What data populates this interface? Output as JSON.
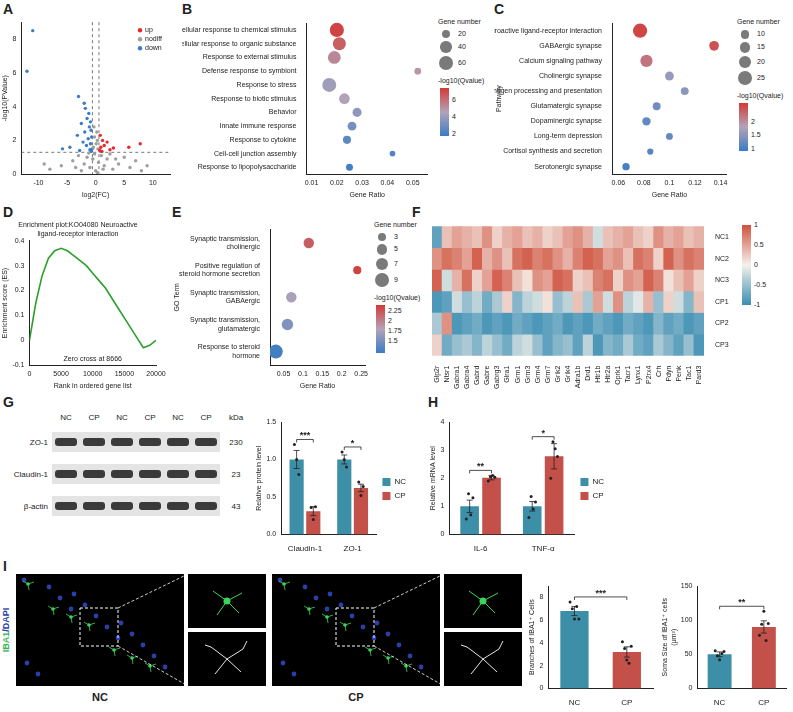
{
  "chart_data": [
    {
      "panel": "A",
      "type": "scatter",
      "x_label": "log2(FC)",
      "y_label": "-log10(PValue)",
      "xlim": [
        -13,
        13
      ],
      "xticks": [
        -10,
        -5,
        0,
        5,
        10
      ],
      "ylim": [
        0,
        9
      ],
      "yticks": [
        0,
        2,
        4,
        6,
        8
      ],
      "grid": false,
      "legend": "upper right",
      "vlines": [
        -0.58,
        0.58
      ],
      "hline": 1.3,
      "series": [
        {
          "name": "up",
          "color": "#e8292b",
          "x": [
            0.8,
            1.2,
            2.0,
            1.5,
            0.9,
            3.1,
            5.8,
            7.8,
            0.7,
            2.5,
            1.1
          ],
          "values": [
            2.3,
            2.0,
            1.9,
            1.7,
            1.6,
            1.55,
            1.6,
            1.8,
            1.4,
            1.45,
            1.35
          ]
        },
        {
          "name": "nodiff",
          "color": "#9e9e9e",
          "x": [
            -0.3,
            0.2,
            -0.2,
            0.3,
            0.1,
            -0.4,
            0.4,
            -8,
            -6,
            -4,
            -3,
            -2,
            -1.5,
            -1,
            -0.5,
            0,
            0.5,
            1,
            1.5,
            2,
            3,
            4,
            5,
            6,
            7,
            8,
            9,
            -9,
            -2.5,
            2.5,
            -3.5,
            3.5,
            -0.2,
            0.3,
            -1.2,
            1.3
          ],
          "values": [
            2.8,
            2.5,
            2.2,
            2.0,
            1.8,
            1.6,
            1.5,
            0.3,
            0.5,
            0.8,
            1.1,
            0.6,
            1.0,
            0.4,
            0.9,
            0.2,
            0.7,
            1.1,
            0.5,
            0.9,
            0.3,
            0.6,
            1.0,
            0.4,
            0.8,
            0.2,
            0.5,
            0.6,
            0.2,
            1.2,
            0.4,
            0.9,
            1.2,
            0.1,
            1.25,
            0.3
          ]
        },
        {
          "name": "down",
          "color": "#3d7cc9",
          "x": [
            -11,
            -12,
            -3,
            -2,
            -1.8,
            -1.2,
            -1.5,
            -0.9,
            -2.5,
            -1.1,
            -0.8,
            -1.9,
            -3.2,
            -0.7,
            -1.3,
            -2.2,
            -0.9,
            -1.6,
            -4.5,
            -0.6,
            -1.0,
            -2.8,
            -5.8,
            -0.75
          ],
          "values": [
            8.5,
            6.1,
            4.6,
            4.2,
            3.9,
            3.6,
            3.3,
            3.1,
            3.0,
            2.8,
            2.6,
            2.5,
            2.3,
            2.2,
            2.1,
            1.9,
            1.8,
            1.7,
            1.6,
            1.5,
            1.45,
            1.4,
            1.5,
            1.35
          ]
        }
      ]
    },
    {
      "panel": "B",
      "type": "bubble",
      "x_label": "Gene Ratio",
      "grid": false,
      "xlim": [
        0.008,
        0.056
      ],
      "xticks": [
        0.01,
        0.02,
        0.03,
        0.04,
        0.05
      ],
      "categories": [
        "Cellular response to chemical stimulus",
        "Cellular response to organic substance",
        "Response to external stimulus",
        "Defense response to symbiont",
        "Response to stress",
        "Response to biotic stimulus",
        "Behavior",
        "Innate immune response",
        "Response to cytokine",
        "Cell-cell junction assembly",
        "Response to lipopolysaccharide"
      ],
      "x": [
        0.02,
        0.021,
        0.019,
        0.052,
        0.017,
        0.023,
        0.028,
        0.026,
        0.024,
        0.042,
        0.025
      ],
      "size": [
        62,
        52,
        50,
        14,
        60,
        35,
        25,
        24,
        20,
        10,
        15
      ],
      "size_title": "Gene number",
      "size_ticks": [
        20,
        40,
        60
      ],
      "color_values": [
        7.2,
        6.5,
        5.4,
        5.0,
        4.2,
        4.6,
        3.8,
        3.2,
        2.6,
        2.4,
        2.0
      ],
      "color_title": "-log10(Qvalue)",
      "color_range": [
        1.8,
        7.5
      ],
      "color_ticks": [
        2,
        4,
        6
      ]
    },
    {
      "panel": "C",
      "type": "bubble",
      "x_label": "Gene Ratio",
      "y_label": "Pathway",
      "grid": false,
      "xlim": [
        0.055,
        0.145
      ],
      "xticks": [
        0.06,
        0.08,
        0.1,
        0.12,
        0.14
      ],
      "categories": [
        "Neuroactive ligand-receptor interaction",
        "GABAergic synapse",
        "Calcium signaling pathway",
        "Cholinergic synapse",
        "Antigen processing and presentation",
        "Glutamatergic synapse",
        "Dopaminergic synapse",
        "Long-term depression",
        "Cortisol synthesis and secretion",
        "Serotonergic synapse"
      ],
      "x": [
        0.077,
        0.135,
        0.082,
        0.1,
        0.112,
        0.09,
        0.082,
        0.1,
        0.085,
        0.066
      ],
      "size": [
        26,
        12,
        19,
        10,
        8,
        8,
        9,
        6,
        5,
        7
      ],
      "size_title": "Gene number",
      "size_ticks": [
        10,
        15,
        20,
        25
      ],
      "color_values": [
        2.6,
        2.5,
        2.2,
        1.6,
        1.5,
        1.3,
        1.2,
        1.2,
        1.1,
        1.0
      ],
      "color_title": "-log10(Qvalue)",
      "color_range": [
        0.9,
        2.7
      ],
      "color_ticks": [
        1,
        1.5,
        2
      ]
    },
    {
      "panel": "D",
      "type": "line",
      "title": "Enrichment plot:KO04080 Neuroactive ligand-receptor interaction",
      "x_label": "Rank in ordered gene list",
      "y_label": "Enrichment score (ES)",
      "grid": false,
      "color": "#2ca02c",
      "xlim": [
        0,
        20000
      ],
      "xticks": [
        0,
        5000,
        10000,
        15000,
        20000
      ],
      "ylim": [
        -0.1,
        0.4
      ],
      "yticks": [
        -0.1,
        0,
        0.1,
        0.2,
        0.3,
        0.4
      ],
      "x": [
        0,
        1000,
        2000,
        3000,
        4000,
        5000,
        6000,
        7000,
        8000,
        9000,
        10000,
        11000,
        12000,
        13000,
        14000,
        15000,
        16000,
        17000,
        18000,
        19000,
        20000
      ],
      "values": [
        0,
        0.15,
        0.26,
        0.33,
        0.36,
        0.37,
        0.36,
        0.34,
        0.32,
        0.3,
        0.27,
        0.24,
        0.21,
        0.17,
        0.13,
        0.09,
        0.05,
        0.01,
        -0.03,
        -0.02,
        0
      ],
      "annotation": "Zero cross at 8666"
    },
    {
      "panel": "E",
      "type": "bubble",
      "x_label": "Gene Ratio",
      "y_label": "GO Term",
      "grid": false,
      "xlim": [
        0.015,
        0.26
      ],
      "xticks": [
        0.05,
        0.1,
        0.15,
        0.2,
        0.25
      ],
      "categories": [
        "Synaptic transmission, cholinergic",
        "Positive regulation of steroid hormone secretion",
        "Synaptic transmission, GABAergic",
        "Synaptic transmission, glutamatergic",
        "Response to steroid hormone"
      ],
      "x": [
        0.115,
        0.24,
        0.07,
        0.06,
        0.03
      ],
      "size": [
        5,
        3,
        5,
        6,
        9
      ],
      "size_title": "Gene number",
      "size_ticks": [
        3,
        5,
        7,
        9
      ],
      "color_values": [
        2.2,
        2.35,
        1.75,
        1.55,
        1.25
      ],
      "color_title": "-log10(Qvalue)",
      "color_range": [
        1.2,
        2.4
      ],
      "color_ticks": [
        1.5,
        1.75,
        2,
        2.25
      ]
    },
    {
      "panel": "F",
      "type": "heatmap",
      "x": [
        "Glp2r",
        "Ntsr1",
        "Gabra1",
        "Gabra4",
        "Gabrd",
        "Gabre",
        "Gabrg3",
        "Glra1",
        "Grm1",
        "Grm3",
        "Grm4",
        "Grm7",
        "Grik2",
        "Grik4",
        "Adra1b",
        "Drd1",
        "Htr1b",
        "Htr2a",
        "Oprk1",
        "Tacr1",
        "Lynx1",
        "P2rx4",
        "Crh",
        "Pdyn",
        "Penk",
        "Tac1",
        "Pard3"
      ],
      "rows": [
        "NC1",
        "NC2",
        "NC3",
        "CP1",
        "CP2",
        "CP3"
      ],
      "cells": [
        [
          -0.8,
          0.3,
          0.5,
          0.4,
          0.3,
          0.6,
          0.2,
          0.4,
          0.5,
          0.3,
          0.4,
          0.2,
          0.3,
          0.5,
          0.6,
          0.4,
          -0.2,
          0.3,
          0.4,
          0.5,
          0.3,
          0.2,
          0.6,
          0.4,
          0.5,
          0.3,
          0.4
        ],
        [
          0.6,
          0.8,
          0.7,
          0.5,
          0.9,
          0.4,
          0.6,
          0.3,
          0.8,
          0.9,
          0.7,
          0.8,
          0.6,
          0.4,
          0.7,
          0.9,
          0.8,
          0.5,
          0.6,
          0.3,
          0.8,
          0.7,
          0.2,
          0.9,
          0.6,
          0.8,
          0.7
        ],
        [
          0.9,
          -0.2,
          0.4,
          0.8,
          0.2,
          0.5,
          0.9,
          0.7,
          0.3,
          0.1,
          0.6,
          0.5,
          0.9,
          0.8,
          0.2,
          0.3,
          0.7,
          0.8,
          0.2,
          0.6,
          0.5,
          0.9,
          0.7,
          0.1,
          0.3,
          0.5,
          0.2
        ],
        [
          -0.9,
          -0.8,
          -0.2,
          -0.5,
          -0.3,
          -0.7,
          -0.4,
          0.2,
          -0.6,
          -0.3,
          -0.2,
          0.1,
          -0.5,
          -0.3,
          0.3,
          -0.4,
          0.5,
          -0.2,
          0.6,
          -0.3,
          -0.1,
          0.4,
          -0.5,
          0.2,
          -0.2,
          -0.6,
          0.3
        ],
        [
          -0.4,
          0.6,
          -0.9,
          -0.8,
          -0.7,
          -0.9,
          -0.8,
          -0.9,
          -0.7,
          -0.8,
          -0.9,
          -0.8,
          -0.7,
          -0.9,
          -0.8,
          -0.9,
          -0.7,
          -0.8,
          -0.9,
          -0.7,
          -0.8,
          -0.9,
          -0.6,
          -0.8,
          -0.7,
          -0.9,
          -0.8
        ],
        [
          0.2,
          -0.7,
          -0.5,
          -0.4,
          -0.6,
          -0.3,
          -0.5,
          -0.7,
          -0.3,
          -0.2,
          -0.5,
          -0.8,
          -0.6,
          -0.5,
          -0.8,
          -0.3,
          -0.9,
          -0.6,
          -0.7,
          -0.4,
          -0.7,
          -0.8,
          -0.4,
          -0.6,
          -0.8,
          -0.5,
          -0.9
        ]
      ],
      "color_range": [
        -1,
        1
      ],
      "color_ticks": [
        -1,
        -0.5,
        0,
        0.5,
        1
      ]
    },
    {
      "panel": "G",
      "type": "blot",
      "lanes": [
        "NC",
        "CP",
        "NC",
        "CP",
        "NC",
        "CP"
      ],
      "kda_title": "kDa",
      "bands": [
        {
          "label": "ZO-1",
          "kda": 230
        },
        {
          "label": "Claudin-1",
          "kda": 23
        },
        {
          "label": "β-actin",
          "kda": 43
        }
      ]
    },
    {
      "panel": "G",
      "type": "bar",
      "y_label": "Relative protein level",
      "grid": false,
      "legend": "right",
      "categories": [
        "Claudin-1",
        "ZO-1"
      ],
      "ylim": [
        0,
        1.5
      ],
      "yticks": [
        {
          "value": 0,
          "label": "0.0"
        },
        {
          "value": 0.5,
          "label": "0.5"
        },
        {
          "value": 1,
          "label": "1.0"
        },
        {
          "value": 1.5,
          "label": "1.5"
        }
      ],
      "series": [
        {
          "name": "NC",
          "color": "#3d8fa8",
          "values": [
            1.0,
            1.0
          ],
          "errors": [
            0.12,
            0.06
          ],
          "points": [
            [
              1.2,
              1.0,
              0.8
            ],
            [
              1.1,
              1.0,
              0.9
            ]
          ]
        },
        {
          "name": "CP",
          "color": "#c4504a",
          "values": [
            0.31,
            0.62
          ],
          "errors": [
            0.06,
            0.05
          ],
          "points": [
            [
              0.36,
              0.2,
              0.37
            ],
            [
              0.7,
              0.52,
              0.64
            ]
          ]
        }
      ],
      "significance": [
        "***",
        "*"
      ]
    },
    {
      "panel": "H",
      "type": "bar",
      "y_label": "Relative mRNA level",
      "grid": false,
      "legend": "right",
      "categories": [
        "IL-6",
        "TNF-α"
      ],
      "ylim": [
        0,
        4
      ],
      "yticks": [
        0,
        1,
        2,
        3,
        4
      ],
      "series": [
        {
          "name": "NC",
          "color": "#3d8fa8",
          "values": [
            1.0,
            1.0
          ],
          "errors": [
            0.22,
            0.17
          ],
          "points": [
            [
              0.55,
              1.45,
              0.7,
              1.3
            ],
            [
              0.6,
              1.35,
              0.9,
              1.15
            ]
          ]
        },
        {
          "name": "CP",
          "color": "#c4504a",
          "values": [
            2.02,
            2.78
          ],
          "errors": [
            0.08,
            0.45
          ],
          "points": [
            [
              1.9,
              2.05,
              2.1,
              2.03
            ],
            [
              2.0,
              3.3,
              3.05,
              2.77
            ]
          ]
        }
      ],
      "significance": [
        "**",
        "*"
      ]
    },
    {
      "panel": "I",
      "type": "micrograph",
      "groups": [
        "NC",
        "CP"
      ],
      "stain_label": [
        {
          "text": "IBA1",
          "color": "#35b552"
        },
        {
          "text": "/",
          "color": "#2b3fa8"
        },
        {
          "text": "DAPI",
          "color": "#2b3fa8"
        }
      ]
    },
    {
      "panel": "I",
      "type": "bar",
      "y_label": "Branches of IBA1⁺ Cells",
      "grid": false,
      "categories": [
        "NC",
        "CP"
      ],
      "values": [
        6.8,
        3.2
      ],
      "colors": [
        "#3d8fa8",
        "#c4504a"
      ],
      "errors": [
        0.4,
        0.45
      ],
      "points": [
        [
          7.6,
          7.0,
          6.1,
          7.2,
          6.1
        ],
        [
          4.1,
          3.5,
          2.5,
          2.2,
          3.7
        ]
      ],
      "ylim": [
        0,
        9
      ],
      "yticks": [
        0,
        2,
        4,
        6,
        8
      ],
      "significance": [
        "***"
      ]
    },
    {
      "panel": "I",
      "type": "bar",
      "y_label": "Soma Size of IBA1⁺ cells (μm²)",
      "grid": false,
      "categories": [
        "NC",
        "CP"
      ],
      "values": [
        50,
        90
      ],
      "colors": [
        "#3d8fa8",
        "#c4504a"
      ],
      "errors": [
        3.5,
        9
      ],
      "points": [
        [
          55,
          48,
          42,
          51,
          54
        ],
        [
          78,
          94,
          113,
          70,
          95
        ]
      ],
      "ylim": [
        0,
        150
      ],
      "yticks": [
        0,
        50,
        100,
        150
      ],
      "significance": [
        "**"
      ]
    }
  ]
}
